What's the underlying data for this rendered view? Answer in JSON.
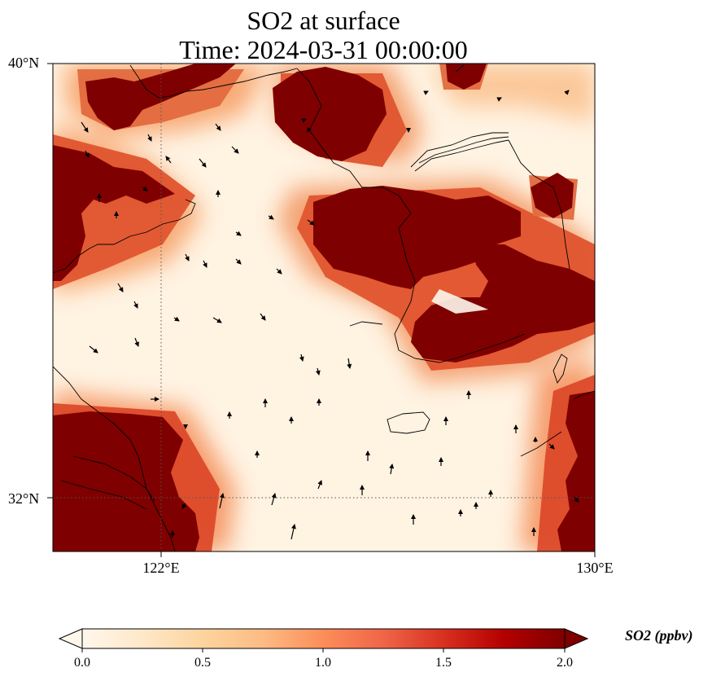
{
  "figure": {
    "title_line1": "SO2 at surface",
    "title_line2": "Time: 2024-03-31 00:00:00"
  },
  "map": {
    "lat_range": [
      30.75,
      40.0
    ],
    "lon_range": [
      120.0,
      130.0
    ],
    "gridlines": {
      "lats": [
        32,
        40
      ],
      "lons": [
        122,
        130
      ],
      "style": "dotted"
    },
    "lat_labels": [
      "40°N",
      "32°N"
    ],
    "lon_labels": [
      "122°E",
      "130°E"
    ],
    "coastlines": true,
    "vector_field": "wind arrows"
  },
  "colorbar": {
    "label": "SO2 (ppbv)",
    "min": 0.0,
    "max": 2.0,
    "ticks": [
      "0.0",
      "0.5",
      "1.0",
      "1.5",
      "2.0"
    ],
    "extend": "both",
    "colormap": "OrRd",
    "colors": [
      "#fff7ec",
      "#fee8c8",
      "#fdd49e",
      "#fdbb84",
      "#fc8d59",
      "#ef6548",
      "#d7301f",
      "#b30000",
      "#7f0000"
    ]
  }
}
